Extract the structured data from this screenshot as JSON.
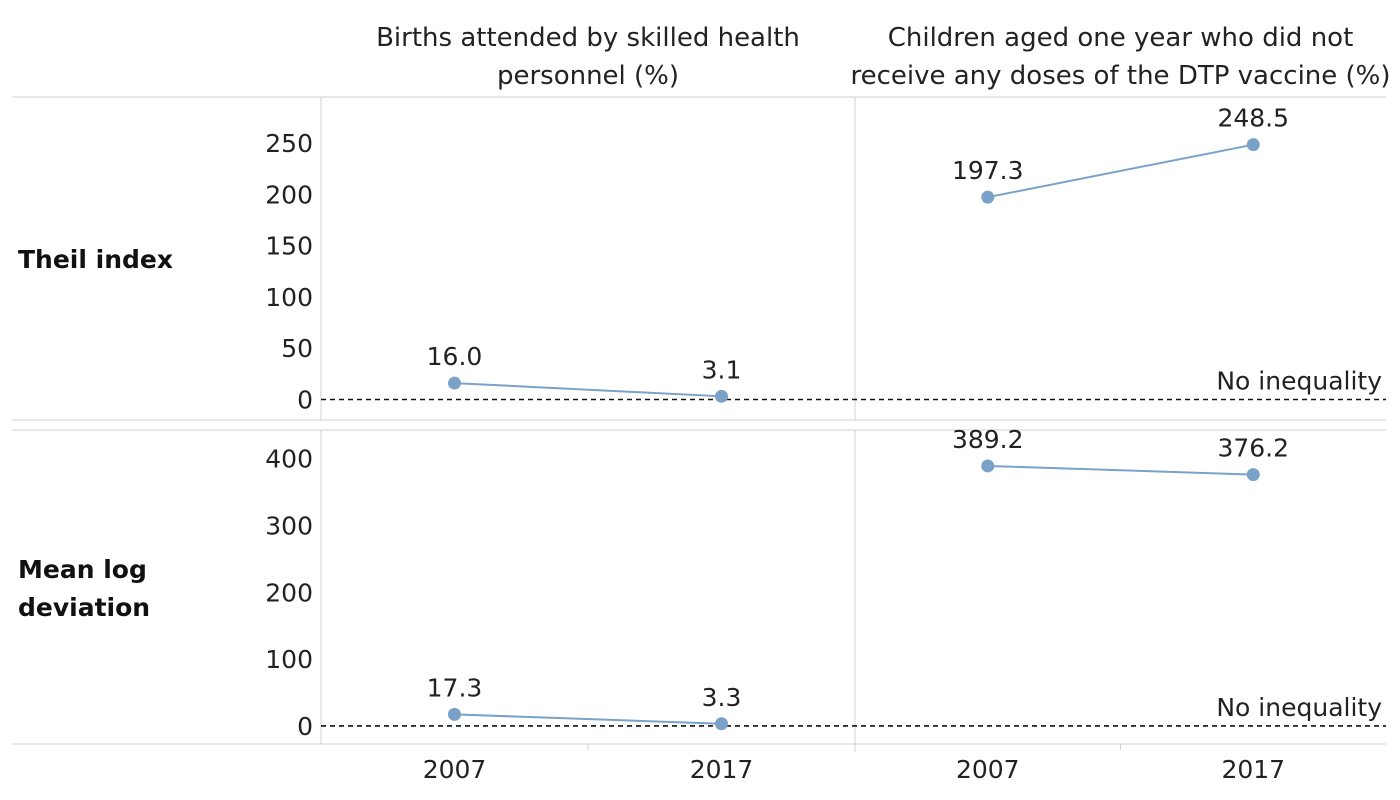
{
  "colors": {
    "series": "#7aa2c8",
    "reference_line": "#111111",
    "grid": "#d0d0d0"
  },
  "chart_data": {
    "type": "line",
    "columns": [
      {
        "title_lines": [
          "Births attended by skilled health",
          "personnel (%)"
        ]
      },
      {
        "title_lines": [
          "Children aged one year who did not",
          "receive any doses of the DTP vaccine (%)"
        ]
      }
    ],
    "x": [
      "2007",
      "2017"
    ],
    "reference_label": "No inequality",
    "reference_value": 0,
    "rows": [
      {
        "label_lines": [
          "Theil index"
        ],
        "ylim": [
          -20,
          295
        ],
        "yticks": [
          0,
          50,
          100,
          150,
          200,
          250
        ],
        "panels": [
          {
            "values": [
              16.0,
              3.1
            ],
            "labels": [
              "16.0",
              "3.1"
            ]
          },
          {
            "values": [
              197.3,
              248.5
            ],
            "labels": [
              "197.3",
              "248.5"
            ]
          }
        ]
      },
      {
        "label_lines": [
          "Mean log",
          "deviation"
        ],
        "ylim": [
          -27,
          443
        ],
        "yticks": [
          0,
          100,
          200,
          300,
          400
        ],
        "panels": [
          {
            "values": [
              17.3,
              3.3
            ],
            "labels": [
              "17.3",
              "3.3"
            ]
          },
          {
            "values": [
              389.2,
              376.2
            ],
            "labels": [
              "389.2",
              "376.2"
            ]
          }
        ]
      }
    ]
  }
}
